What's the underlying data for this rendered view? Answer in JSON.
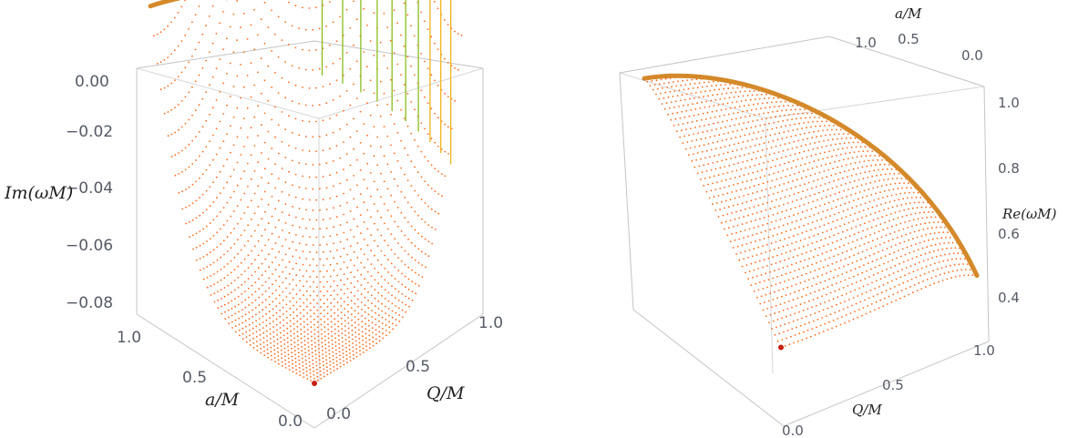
{
  "chart_data": [
    {
      "type": "scatter",
      "panel": "left",
      "title": "",
      "axes": {
        "x": {
          "label": "Q/M",
          "ticks": [
            "0.0",
            "0.5",
            "1.0"
          ],
          "range": [
            0,
            1
          ]
        },
        "y": {
          "label": "a/M",
          "ticks": [
            "0.0",
            "0.5",
            "1.0"
          ],
          "range": [
            0,
            1
          ]
        },
        "z": {
          "label": "Im(ωM)",
          "ticks": [
            "0.00",
            "−0.02",
            "−0.04",
            "−0.06",
            "−0.08"
          ],
          "range": [
            -0.096,
            0.002
          ]
        }
      },
      "grid": false,
      "legend": "none",
      "series": [
        {
          "style": "dense orange point surface",
          "color": "#ff6a1a",
          "z_at_origin": -0.0963,
          "z_at_extremal": 0.0
        },
        {
          "style": "green/yellow curves near extremal limit",
          "color": "#8bbd1c"
        },
        {
          "style": "thick extremal curve",
          "color": "#d4892a",
          "z_value": 0.0
        },
        {
          "style": "marker at origin (Schwarzschild)",
          "color": "#c81e0f",
          "point": [
            0,
            0,
            -0.0963
          ]
        }
      ]
    },
    {
      "type": "scatter",
      "panel": "right",
      "title": "",
      "axes": {
        "x": {
          "label": "Q/M",
          "ticks": [
            "0.0",
            "0.5",
            "1.0"
          ],
          "range": [
            0,
            1
          ]
        },
        "y": {
          "label": "a/M",
          "ticks": [
            "0.0",
            "0.5",
            "1.0"
          ],
          "range": [
            0,
            1
          ]
        },
        "z": {
          "label": "Re(ωM)",
          "ticks": [
            "0.4",
            "0.6",
            "0.8",
            "1.0"
          ],
          "range": [
            0.3,
            1.05
          ]
        }
      },
      "grid": false,
      "legend": "none",
      "series": [
        {
          "style": "dense orange point surface",
          "color": "#ff6a1a"
        },
        {
          "style": "thick extremal curve",
          "color": "#d4892a"
        },
        {
          "style": "marker at origin (Schwarzschild)",
          "color": "#c81e0f",
          "point": [
            0,
            0,
            0.3737
          ]
        }
      ]
    }
  ]
}
